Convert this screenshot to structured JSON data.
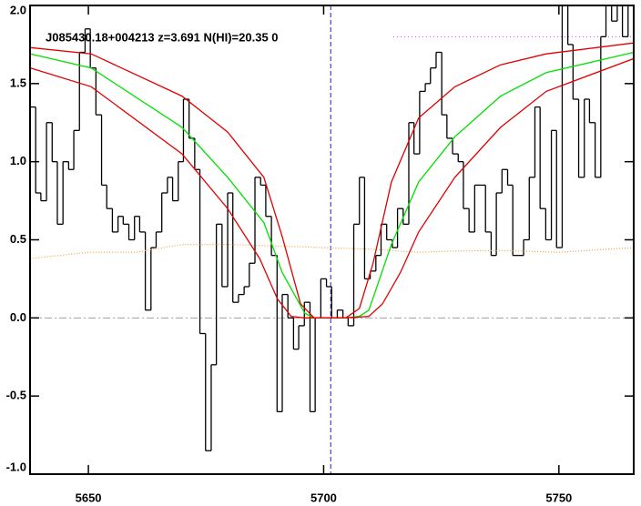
{
  "chart_data": {
    "type": "line",
    "title": "J085430.18+004213 z=3.691 N(HI)=20.35 0",
    "xlim": [
      5637.6,
      5765.9
    ],
    "ylim": [
      -1.0,
      2.0
    ],
    "xticks": [
      5650,
      5700,
      5750
    ],
    "yticks": [
      {
        "value": -1.0,
        "label": "-1.0"
      },
      {
        "value": -0.5,
        "label": "-0.5"
      },
      {
        "value": 0.0,
        "label": "0.0"
      },
      {
        "value": 0.5,
        "label": "0.5"
      },
      {
        "value": 1.0,
        "label": "1.0"
      },
      {
        "value": 1.5,
        "label": "1.5"
      },
      {
        "value": 2.0,
        "label": "2.0"
      }
    ],
    "series": [
      {
        "style": "step",
        "color": "#000000",
        "x": [
          5637.6,
          5638.8,
          5639.9,
          5641.1,
          5642.3,
          5643.4,
          5644.6,
          5645.8,
          5646.9,
          5648.1,
          5649.3,
          5650.4,
          5651.6,
          5652.8,
          5653.9,
          5655.1,
          5656.3,
          5657.4,
          5658.6,
          5659.8,
          5660.9,
          5662.1,
          5663.3,
          5664.4,
          5665.6,
          5666.8,
          5667.9,
          5669.1,
          5670.2,
          5671.4,
          5672.6,
          5673.7,
          5674.9,
          5676.1,
          5677.2,
          5678.4,
          5679.6,
          5680.7,
          5681.9,
          5683.1,
          5684.2,
          5685.4,
          5686.6,
          5687.7,
          5688.9,
          5690.1,
          5691.2,
          5692.4,
          5693.6,
          5694.7,
          5695.9,
          5697.1,
          5698.2,
          5699.4,
          5700.6,
          5701.7,
          5702.9,
          5704.1,
          5705.2,
          5706.4,
          5707.6,
          5708.7,
          5709.9,
          5711.1,
          5712.2,
          5713.4,
          5714.6,
          5715.7,
          5716.9,
          5718.1,
          5719.2,
          5720.4,
          5721.6,
          5722.7,
          5723.9,
          5725.1,
          5726.2,
          5727.4,
          5728.6,
          5729.7,
          5730.9,
          5732.1,
          5733.2,
          5734.4,
          5735.6,
          5736.7,
          5737.9,
          5739.1,
          5740.2,
          5741.4,
          5742.5,
          5743.7,
          5744.9,
          5746.0,
          5747.2,
          5748.4,
          5749.5,
          5750.7,
          5751.9,
          5753.0,
          5754.2,
          5755.4,
          5756.5,
          5757.7,
          5758.9,
          5760.0,
          5761.2,
          5762.4,
          5763.5,
          5764.7
        ],
        "values": [
          1.35,
          0.8,
          0.75,
          1.25,
          1.0,
          0.6,
          1.0,
          0.95,
          1.2,
          1.7,
          1.85,
          1.6,
          1.3,
          0.85,
          0.7,
          0.55,
          0.65,
          0.6,
          0.5,
          0.65,
          0.55,
          0.05,
          0.45,
          0.55,
          0.8,
          0.9,
          0.75,
          1.0,
          1.4,
          1.15,
          0.95,
          -0.1,
          -0.85,
          -0.3,
          0.6,
          0.2,
          0.8,
          0.1,
          0.15,
          0.2,
          0.35,
          0.9,
          0.85,
          0.65,
          0.4,
          -0.6,
          0.15,
          0.0,
          -0.2,
          -0.05,
          0.1,
          -0.6,
          0.0,
          0.25,
          0.2,
          0.0,
          0.05,
          0.0,
          -0.05,
          0.6,
          0.9,
          0.25,
          0.3,
          0.4,
          0.6,
          0.5,
          0.45,
          0.7,
          0.6,
          1.25,
          1.05,
          1.45,
          1.5,
          1.6,
          1.7,
          1.3,
          1.15,
          1.05,
          1.0,
          0.7,
          0.55,
          0.85,
          0.85,
          0.55,
          0.4,
          0.8,
          0.95,
          0.85,
          0.4,
          0.4,
          0.5,
          0.9,
          1.35,
          0.7,
          0.5,
          1.2,
          0.45,
          2.0,
          1.75,
          1.4,
          0.9,
          1.4,
          1.25,
          0.9,
          1.8,
          2.2,
          1.9,
          2.1,
          1.8,
          2.0
        ]
      },
      {
        "style": "dotted",
        "color": "#f0a040",
        "x": [
          5637.7,
          5650,
          5660,
          5670,
          5680,
          5690,
          5700,
          5710,
          5720,
          5730,
          5740,
          5750,
          5765.9
        ],
        "values": [
          0.38,
          0.42,
          0.42,
          0.47,
          0.47,
          0.46,
          0.45,
          0.44,
          0.42,
          0.43,
          0.43,
          0.42,
          0.45
        ]
      },
      {
        "style": "solid",
        "color": "#00e000",
        "x": [
          5637.7,
          5650.6,
          5669.9,
          5679.6,
          5687.3,
          5691.2,
          5696.0,
          5698.0,
          5704.7,
          5707.6,
          5709.6,
          5714.4,
          5720.2,
          5727.9,
          5737.6,
          5747.3,
          5765.9
        ],
        "values": [
          1.69,
          1.6,
          1.22,
          0.9,
          0.61,
          0.29,
          0.03,
          0,
          0,
          0.01,
          0.05,
          0.47,
          0.87,
          1.16,
          1.42,
          1.57,
          1.7
        ]
      },
      {
        "style": "solid",
        "color": "#e00000",
        "x": [
          5637.7,
          5650.6,
          5669.9,
          5679.6,
          5686.4,
          5690.2,
          5693.1,
          5696.0,
          5704.7,
          5709.6,
          5712.5,
          5716.3,
          5720.2,
          5727.9,
          5737.6,
          5747.3,
          5765.9
        ],
        "values": [
          1.6,
          1.48,
          1.05,
          0.7,
          0.38,
          0.12,
          0.01,
          0,
          0,
          0.01,
          0.09,
          0.29,
          0.55,
          0.9,
          1.22,
          1.45,
          1.66
        ]
      },
      {
        "style": "solid",
        "color": "#e00000",
        "x": [
          5637.7,
          5650.6,
          5669.9,
          5679.6,
          5687.3,
          5691.2,
          5695.1,
          5698.0,
          5704.7,
          5707.6,
          5710.5,
          5714.4,
          5720.2,
          5727.9,
          5737.6,
          5747.3,
          5765.9
        ],
        "values": [
          1.73,
          1.69,
          1.42,
          1.19,
          0.9,
          0.52,
          0.09,
          0,
          0,
          0.06,
          0.35,
          0.87,
          1.28,
          1.48,
          1.62,
          1.69,
          1.76
        ]
      }
    ],
    "hlines": [
      {
        "value": 0,
        "color": "#a0a0a0",
        "dash": "8 3 2 3"
      },
      {
        "value": 1.8,
        "xmin": 5714.8,
        "color": "#d040d0",
        "dash": "1 3"
      }
    ],
    "vlines": [
      {
        "value": 5701.5,
        "color": "#2020c0",
        "dash": "5 3"
      }
    ]
  }
}
